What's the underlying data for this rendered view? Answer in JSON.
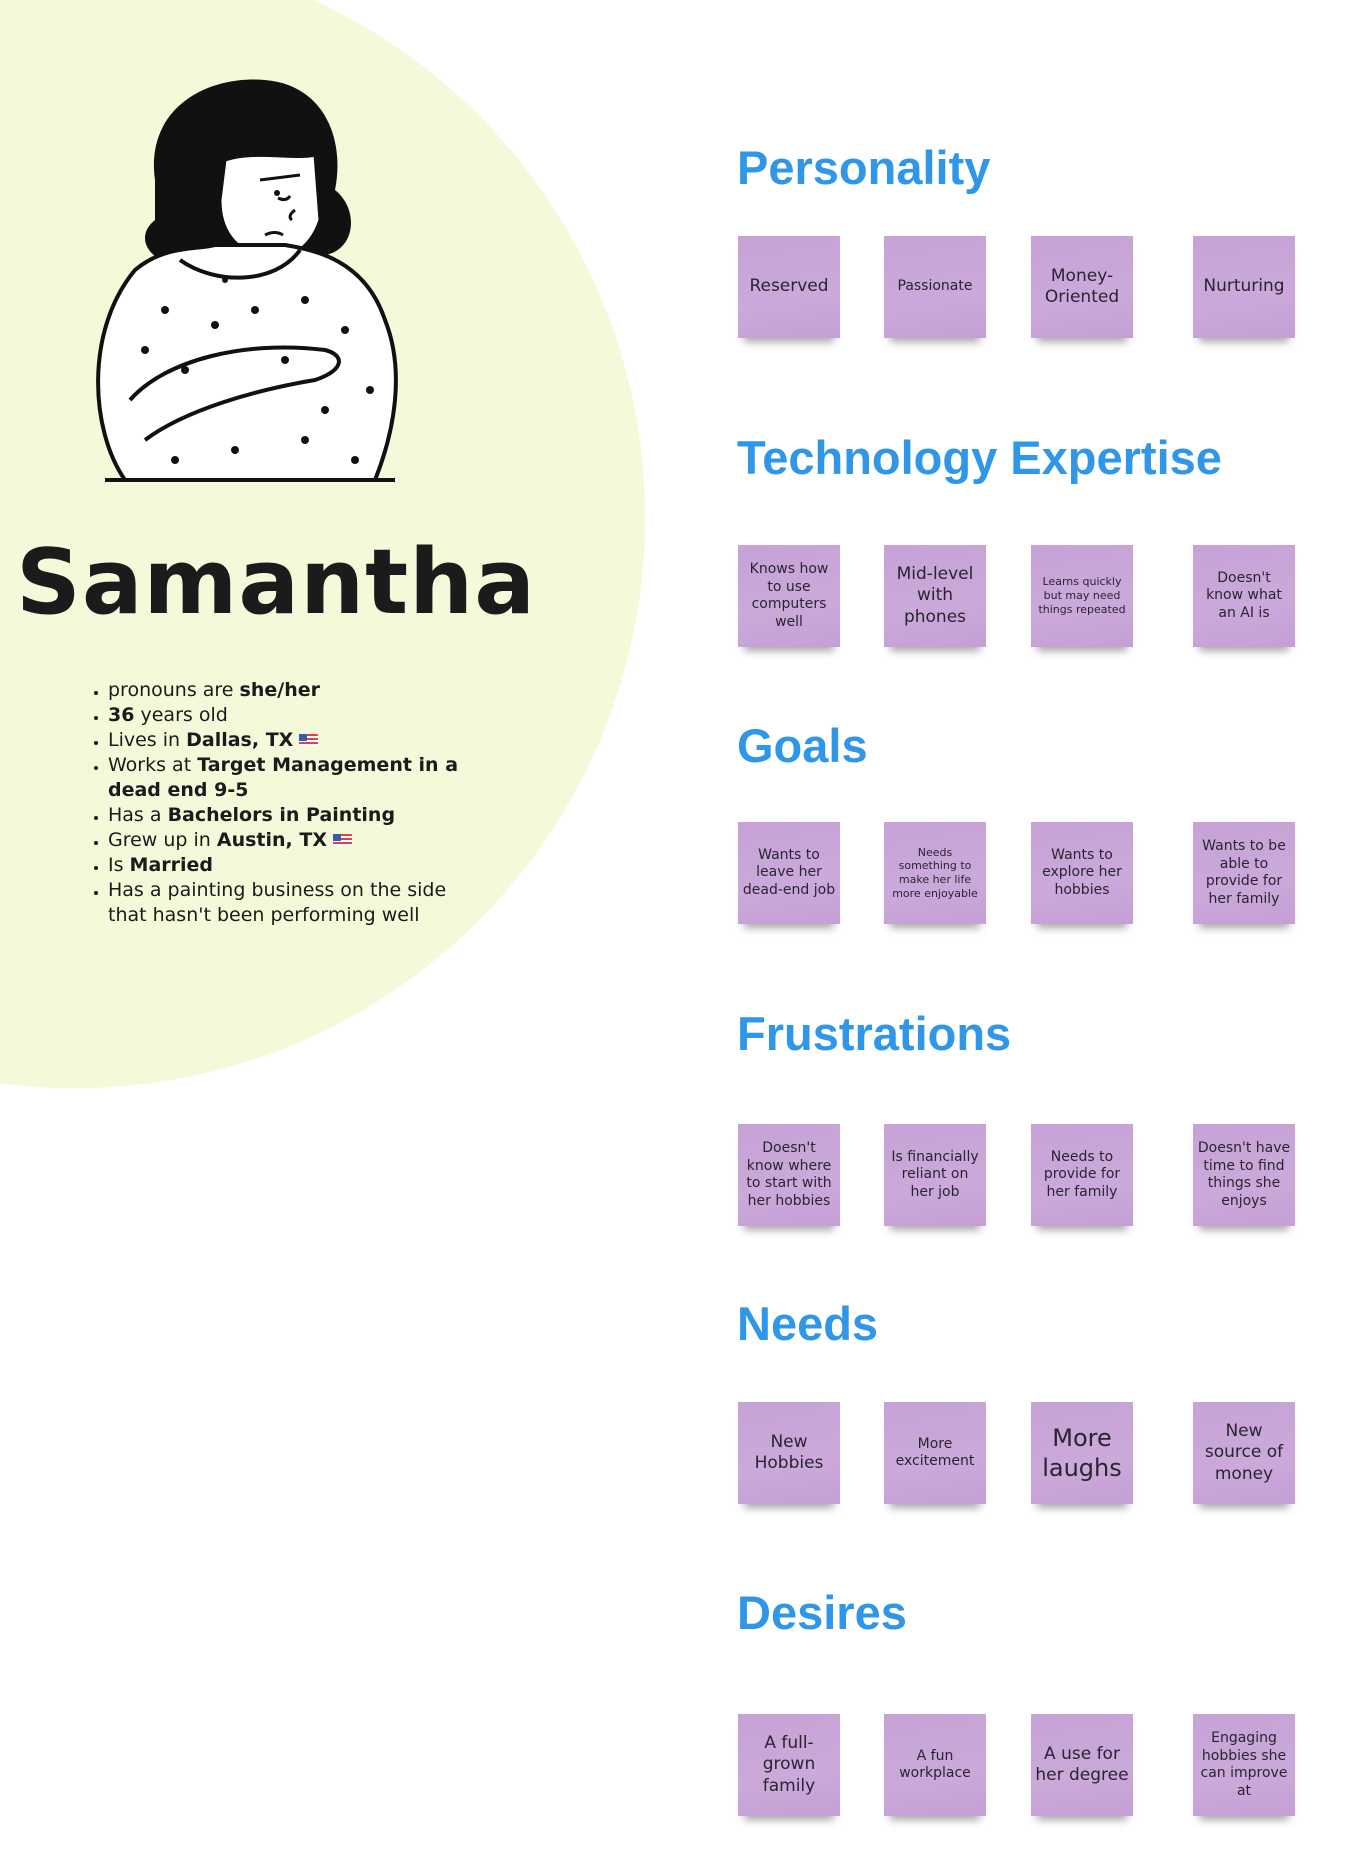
{
  "persona": {
    "name": "Samantha",
    "facts": [
      {
        "pre": "pronouns are ",
        "bold": "she/her",
        "post": "",
        "flag": false
      },
      {
        "pre": "",
        "bold": "36",
        "post": " years old",
        "flag": false
      },
      {
        "pre": "Lives in ",
        "bold": "Dallas, TX",
        "post": "",
        "flag": true
      },
      {
        "pre": "Works at ",
        "bold": "Target Management in a dead end 9-5",
        "post": "",
        "flag": false
      },
      {
        "pre": "Has a ",
        "bold": "Bachelors in Painting",
        "post": "",
        "flag": false
      },
      {
        "pre": "Grew up in ",
        "bold": "Austin, TX",
        "post": "",
        "flag": true
      },
      {
        "pre": "Is ",
        "bold": "Married",
        "post": "",
        "flag": false
      },
      {
        "pre": "Has a painting business on the side that hasn't been performing well",
        "bold": "",
        "post": "",
        "flag": false
      }
    ],
    "circle_color": "#f3f9d9"
  },
  "colors": {
    "heading": "#2f96e8",
    "sticky_note": "#c8a5d8"
  },
  "sections": [
    {
      "title": "Personality",
      "notes": [
        "Reserved",
        "Passionate",
        "Money-Oriented",
        "Nurturing"
      ]
    },
    {
      "title": "Technology Expertise",
      "notes": [
        "Knows how to use computers well",
        "Mid-level with phones",
        "Learns quickly but may need things repeated",
        "Doesn't know what an AI is"
      ]
    },
    {
      "title": "Goals",
      "notes": [
        "Wants to leave her dead-end job",
        "Needs something to make her life more enjoyable",
        "Wants to explore her hobbies",
        "Wants to be able to provide for her family"
      ]
    },
    {
      "title": "Frustrations",
      "notes": [
        "Doesn't know where to start with her hobbies",
        "Is financially reliant on her job",
        "Needs to provide for her family",
        "Doesn't have time to find things she enjoys"
      ]
    },
    {
      "title": "Needs",
      "notes": [
        "New Hobbies",
        "More excitement",
        "More laughs",
        "New source of money"
      ]
    },
    {
      "title": "Desires",
      "notes": [
        "A full-grown family",
        "A fun workplace",
        "A use for her degree",
        "Engaging hobbies she can improve at"
      ]
    }
  ]
}
